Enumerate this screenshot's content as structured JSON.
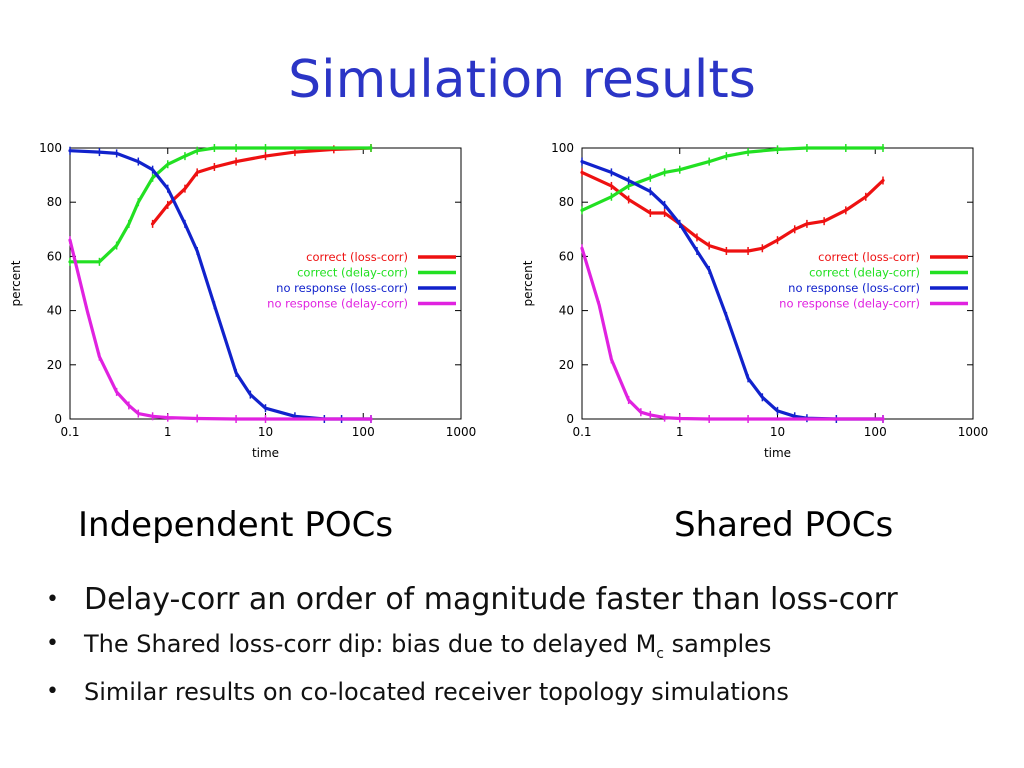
{
  "slide": {
    "title": "Simulation results",
    "captions": [
      "Independent POCs",
      "Shared POCs"
    ],
    "bullets": [
      {
        "text": "Delay-corr an order of magnitude faster than loss-corr"
      },
      {
        "text_before": "The Shared loss-corr dip: bias due to delayed M",
        "subscript": "c",
        "text_after": " samples"
      },
      {
        "text": "Similar results on co-located receiver topology simulations"
      }
    ]
  },
  "chart_data": [
    {
      "type": "line",
      "xlabel": "time",
      "ylabel": "percent",
      "xscale": "log",
      "xlim": [
        0.1,
        1000
      ],
      "ylim": [
        0,
        100
      ],
      "xticks": [
        "0.1",
        "1",
        "10",
        "100",
        "1000"
      ],
      "yticks": [
        "0",
        "20",
        "40",
        "60",
        "80",
        "100"
      ],
      "legend_position": "right",
      "series": [
        {
          "name": "correct (loss-corr)",
          "color": "#ee1111",
          "x": [
            0.7,
            1,
            1.5,
            2,
            3,
            5,
            10,
            20,
            50,
            120
          ],
          "y": [
            72,
            79,
            85,
            91,
            93,
            95,
            97,
            98.5,
            99.5,
            100
          ]
        },
        {
          "name": "correct (delay-corr)",
          "color": "#22e022",
          "x": [
            0.1,
            0.2,
            0.3,
            0.4,
            0.5,
            0.7,
            1,
            1.5,
            2,
            3,
            5,
            10,
            120
          ],
          "y": [
            58,
            58,
            64,
            72,
            80,
            89,
            94,
            97,
            99,
            100,
            100,
            100,
            100
          ]
        },
        {
          "name": "no response (loss-corr)",
          "color": "#1122cc",
          "x": [
            0.1,
            0.2,
            0.3,
            0.5,
            0.7,
            1,
            1.5,
            2,
            3,
            5,
            7,
            10,
            20,
            40,
            60,
            120
          ],
          "y": [
            99,
            98.5,
            98,
            95,
            92,
            85,
            72,
            62,
            42,
            17,
            9,
            4,
            1,
            0,
            0,
            0
          ]
        },
        {
          "name": "no response (delay-corr)",
          "color": "#e022e0",
          "x": [
            0.1,
            0.15,
            0.2,
            0.3,
            0.4,
            0.5,
            0.7,
            1,
            2,
            5,
            10,
            120
          ],
          "y": [
            66,
            40,
            23,
            10,
            5,
            2,
            1,
            0.5,
            0.2,
            0,
            0,
            0
          ]
        }
      ]
    },
    {
      "type": "line",
      "xlabel": "time",
      "ylabel": "percent",
      "xscale": "log",
      "xlim": [
        0.1,
        1000
      ],
      "ylim": [
        0,
        100
      ],
      "xticks": [
        "0.1",
        "1",
        "10",
        "100",
        "1000"
      ],
      "yticks": [
        "0",
        "20",
        "40",
        "60",
        "80",
        "100"
      ],
      "legend_position": "right",
      "series": [
        {
          "name": "correct (loss-corr)",
          "color": "#ee1111",
          "x": [
            0.1,
            0.2,
            0.3,
            0.5,
            0.7,
            1,
            1.5,
            2,
            3,
            5,
            7,
            10,
            15,
            20,
            30,
            50,
            80,
            120
          ],
          "y": [
            91,
            86,
            81,
            76,
            76,
            72,
            67,
            64,
            62,
            62,
            63,
            66,
            70,
            72,
            73,
            77,
            82,
            88
          ]
        },
        {
          "name": "correct (delay-corr)",
          "color": "#22e022",
          "x": [
            0.1,
            0.2,
            0.3,
            0.5,
            0.7,
            1,
            2,
            3,
            5,
            10,
            20,
            50,
            120
          ],
          "y": [
            77,
            82,
            86,
            89,
            91,
            92,
            95,
            97,
            98.5,
            99.5,
            100,
            100,
            100
          ]
        },
        {
          "name": "no response (loss-corr)",
          "color": "#1122cc",
          "x": [
            0.1,
            0.2,
            0.3,
            0.5,
            0.7,
            1,
            1.5,
            2,
            3,
            5,
            7,
            10,
            15,
            20,
            40,
            120
          ],
          "y": [
            95,
            91,
            88,
            84,
            79,
            72,
            62,
            55,
            38,
            15,
            8,
            3,
            1,
            0.3,
            0,
            0
          ]
        },
        {
          "name": "no response (delay-corr)",
          "color": "#e022e0",
          "x": [
            0.1,
            0.15,
            0.2,
            0.3,
            0.4,
            0.5,
            0.7,
            1,
            2,
            5,
            120
          ],
          "y": [
            63,
            42,
            22,
            7,
            2.5,
            1.5,
            0.5,
            0.2,
            0,
            0,
            0
          ]
        }
      ]
    }
  ]
}
